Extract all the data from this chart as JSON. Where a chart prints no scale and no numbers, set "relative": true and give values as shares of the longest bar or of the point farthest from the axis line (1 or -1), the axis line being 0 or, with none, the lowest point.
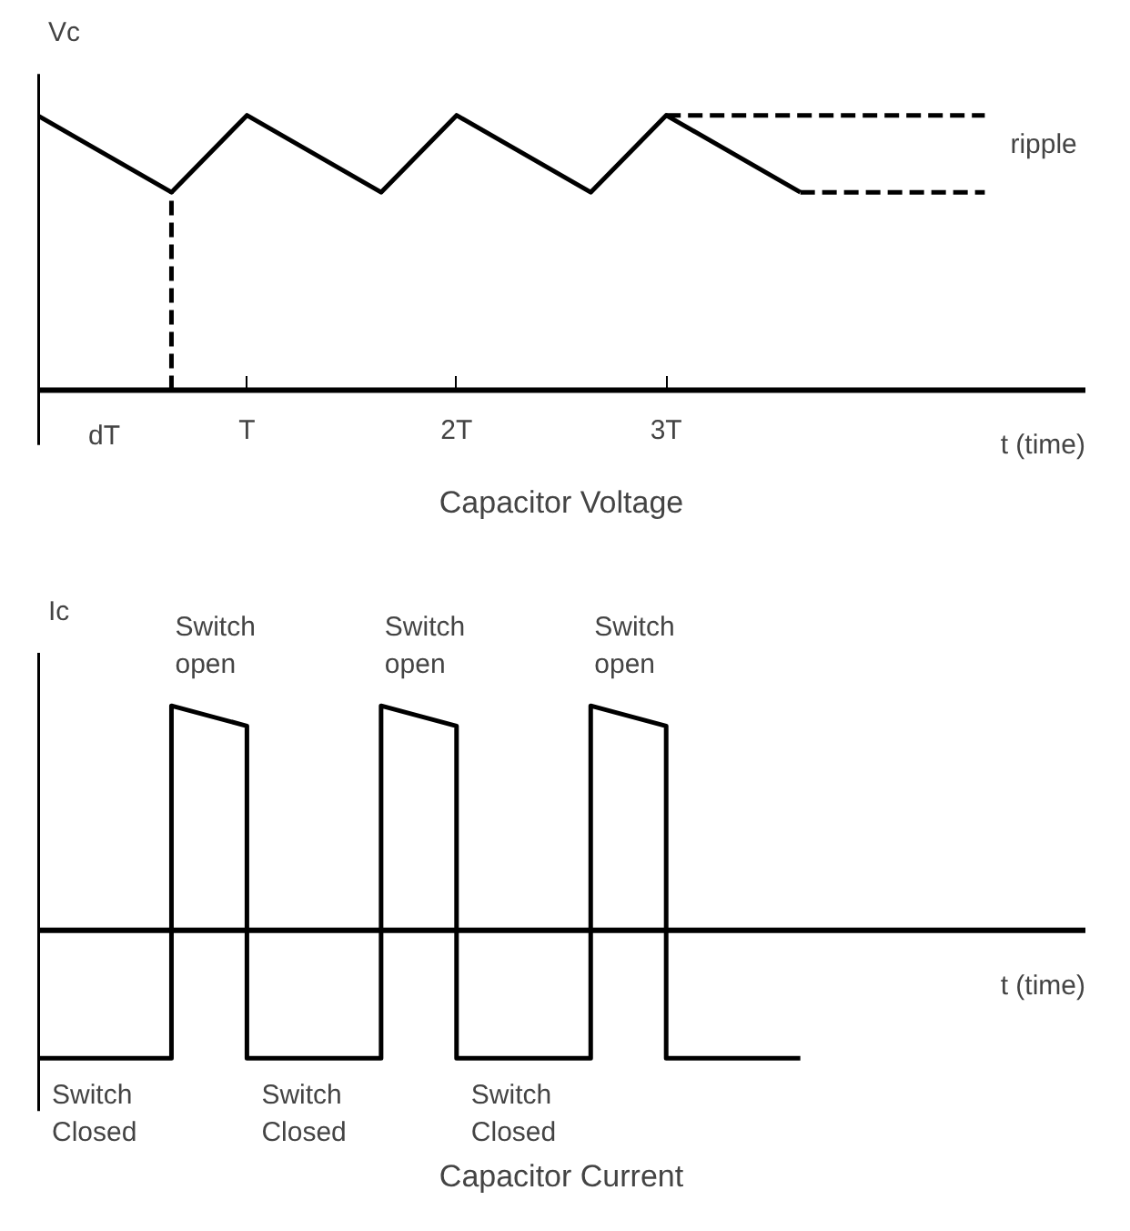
{
  "chart_data": [
    {
      "type": "line",
      "title": "Capacitor Voltage",
      "xlabel": "t (time)",
      "ylabel": "Vc",
      "relative": true,
      "xlim": [
        0,
        5
      ],
      "xticks": [
        {
          "value": 1,
          "label": "T"
        },
        {
          "value": 2,
          "label": "2T"
        },
        {
          "value": 3,
          "label": "3T"
        }
      ],
      "grid": false,
      "series": [
        {
          "color": "#000000",
          "x": [
            0,
            0.64,
            1,
            1.64,
            2,
            2.64,
            3,
            3.64
          ],
          "values": [
            1,
            0.72,
            1,
            0.72,
            1,
            0.72,
            1,
            0.72
          ],
          "line_style": "solid"
        },
        {
          "color": "#000000",
          "x": [
            0.64,
            0.64
          ],
          "values": [
            0,
            0.72
          ],
          "line_style": "dashed"
        },
        {
          "color": "#000000",
          "x": [
            3,
            4.52
          ],
          "values": [
            1,
            1
          ],
          "line_style": "dashed"
        },
        {
          "color": "#000000",
          "x": [
            3.64,
            4.52
          ],
          "values": [
            0.72,
            0.72
          ],
          "line_style": "dashed"
        }
      ],
      "annotations": [
        {
          "text": "dT",
          "x": 0.64,
          "y": 0
        },
        {
          "text": "ripple",
          "x": 4.52,
          "y": 1
        }
      ]
    },
    {
      "type": "line",
      "title": "Capacitor Current",
      "xlabel": "t (time)",
      "ylabel": "Ic",
      "relative": true,
      "xlim": [
        0,
        5
      ],
      "grid": false,
      "series": [
        {
          "color": "#000000",
          "x": [
            0,
            0.64,
            0.64,
            1,
            1,
            1.64,
            1.64,
            2,
            2,
            2.64,
            2.64,
            3,
            3,
            3.64
          ],
          "values": [
            -0.57,
            -0.57,
            1,
            0.91,
            -0.57,
            -0.57,
            1,
            0.91,
            -0.57,
            -0.57,
            1,
            0.91,
            -0.57,
            -0.57
          ],
          "line_style": "solid"
        }
      ],
      "annotations": [
        {
          "text": "Switch\nopen",
          "x": 0.64,
          "y": 1
        },
        {
          "text": "Switch\nopen",
          "x": 1.64,
          "y": 1
        },
        {
          "text": "Switch\nopen",
          "x": 2.64,
          "y": 1
        },
        {
          "text": "Switch\nClosed",
          "x": 0,
          "y": -0.57
        },
        {
          "text": "Switch\nClosed",
          "x": 1,
          "y": -0.57
        },
        {
          "text": "Switch\nClosed",
          "x": 2,
          "y": -0.57
        }
      ]
    }
  ]
}
